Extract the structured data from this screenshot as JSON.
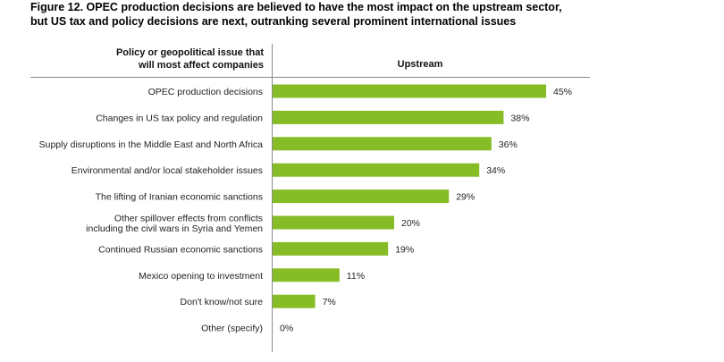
{
  "title_lines": [
    "Figure 12. OPEC production decisions are believed to have the most impact on the upstream sector,",
    "but US tax and policy decisions are next, outranking several prominent international issues"
  ],
  "header": {
    "category_lines": [
      "Policy or geopolitical issue that",
      "will most affect companies"
    ],
    "series_label": "Upstream"
  },
  "colors": {
    "bar": "#86bc25",
    "rule": "#8a8a8a"
  },
  "chart_data": {
    "type": "bar",
    "orientation": "horizontal",
    "categories": [
      [
        "OPEC production decisions"
      ],
      [
        "Changes in US tax policy and regulation"
      ],
      [
        "Supply disruptions in the Middle East and North Africa"
      ],
      [
        "Environmental and/or local stakeholder issues"
      ],
      [
        "The lifting of Iranian economic sanctions"
      ],
      [
        "Other spillover effects from conflicts",
        "including the civil wars in Syria and Yemen"
      ],
      [
        "Continued Russian economic sanctions"
      ],
      [
        "Mexico opening to investment"
      ],
      [
        "Don't know/not sure"
      ],
      [
        "Other (specify)"
      ]
    ],
    "series": [
      {
        "name": "Upstream",
        "values": [
          45,
          38,
          36,
          34,
          29,
          20,
          19,
          11,
          7,
          0
        ]
      }
    ],
    "value_labels": [
      "45%",
      "38%",
      "36%",
      "34%",
      "29%",
      "20%",
      "19%",
      "11%",
      "7%",
      "0%"
    ],
    "xlim": [
      0,
      45
    ],
    "grid": false,
    "legend": "none"
  }
}
